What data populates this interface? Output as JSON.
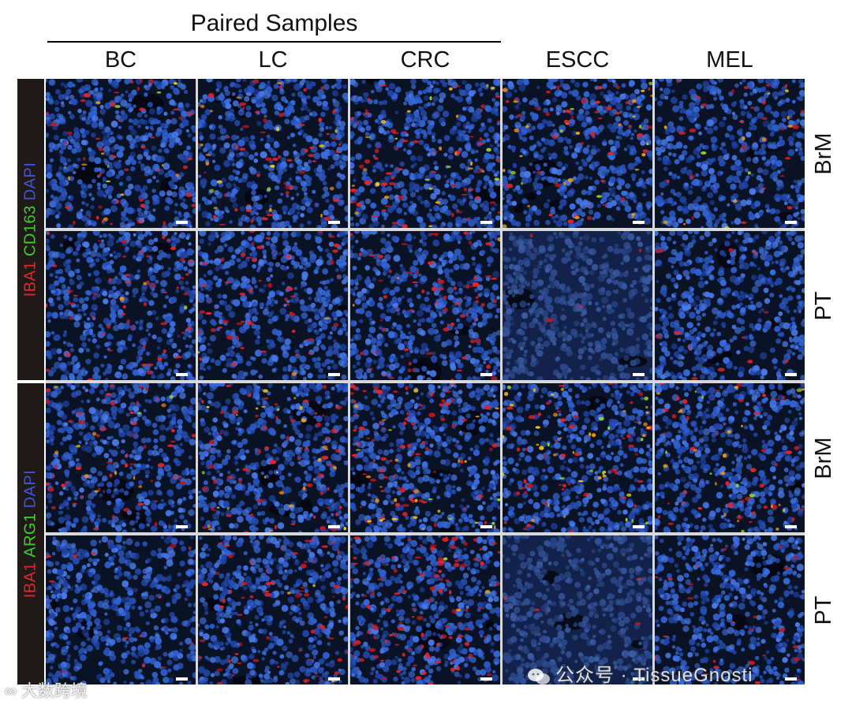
{
  "header": {
    "paired_title": "Paired Samples"
  },
  "columns": [
    "BC",
    "LC",
    "CRC",
    "ESCC",
    "MEL"
  ],
  "rows": [
    "BrM",
    "PT",
    "BrM",
    "PT"
  ],
  "bands": [
    {
      "markers": [
        {
          "text": "IBA1",
          "color": "#e8262d"
        },
        {
          "text": "CD163",
          "color": "#3bd12b"
        },
        {
          "text": "DAPI",
          "color": "#3f55e6"
        }
      ]
    },
    {
      "markers": [
        {
          "text": "IBA1",
          "color": "#e8262d"
        },
        {
          "text": "ARG1",
          "color": "#3bd12b"
        },
        {
          "text": "DAPI",
          "color": "#3f55e6"
        }
      ]
    }
  ],
  "watermark": {
    "left_text": "大数跨境",
    "right_text": "公众号 · TissueGnosti"
  }
}
